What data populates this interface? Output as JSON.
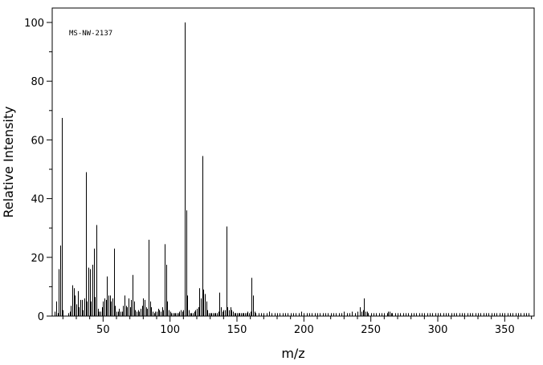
{
  "chart_data": {
    "type": "bar",
    "annotation": "MS-NW-2137",
    "xlabel": "m/z",
    "ylabel": "Relative Intensity",
    "xlim": [
      12,
      372
    ],
    "ylim": [
      0,
      100
    ],
    "x_ticks": [
      50,
      100,
      150,
      200,
      250,
      300,
      350
    ],
    "x_tick_labels": [
      "50",
      "100",
      "150",
      "200",
      "250",
      "300",
      "350"
    ],
    "y_ticks": [
      0,
      20,
      40,
      60,
      80,
      100
    ],
    "y_tick_labels": [
      "0",
      "20",
      "40",
      "60",
      "80",
      "100"
    ],
    "grid": false,
    "legend": "none",
    "colors": {
      "bars": "#000000",
      "frame": "#000000"
    },
    "peaks": [
      [
        14,
        1.5
      ],
      [
        15,
        5
      ],
      [
        16,
        1
      ],
      [
        17,
        16
      ],
      [
        18,
        24
      ],
      [
        19,
        67.5
      ],
      [
        20,
        2
      ],
      [
        24,
        1
      ],
      [
        25,
        1.5
      ],
      [
        26,
        3.5
      ],
      [
        27,
        10.5
      ],
      [
        28,
        9.5
      ],
      [
        29,
        7
      ],
      [
        30,
        4
      ],
      [
        31,
        8.5
      ],
      [
        32,
        3
      ],
      [
        33,
        5.5
      ],
      [
        34,
        5.5
      ],
      [
        35,
        2
      ],
      [
        36,
        6
      ],
      [
        37,
        49
      ],
      [
        38,
        5
      ],
      [
        39,
        16.5
      ],
      [
        40,
        16
      ],
      [
        41,
        5
      ],
      [
        42,
        17.5
      ],
      [
        43,
        23
      ],
      [
        44,
        6.5
      ],
      [
        45,
        31
      ],
      [
        46,
        2.5
      ],
      [
        47,
        1.5
      ],
      [
        48,
        1.5
      ],
      [
        49,
        3
      ],
      [
        50,
        5
      ],
      [
        51,
        6
      ],
      [
        52,
        5.5
      ],
      [
        53,
        13.5
      ],
      [
        54,
        7
      ],
      [
        55,
        7
      ],
      [
        56,
        5
      ],
      [
        57,
        6
      ],
      [
        58,
        23
      ],
      [
        59,
        3.5
      ],
      [
        60,
        1.5
      ],
      [
        61,
        1.5
      ],
      [
        62,
        2.5
      ],
      [
        63,
        1.5
      ],
      [
        64,
        1.5
      ],
      [
        65,
        3.5
      ],
      [
        66,
        7
      ],
      [
        67,
        3.5
      ],
      [
        68,
        3
      ],
      [
        69,
        6
      ],
      [
        70,
        3
      ],
      [
        71,
        5.5
      ],
      [
        72,
        14
      ],
      [
        73,
        5
      ],
      [
        74,
        2
      ],
      [
        75,
        1.5
      ],
      [
        76,
        2
      ],
      [
        77,
        1.5
      ],
      [
        78,
        2.5
      ],
      [
        79,
        3.5
      ],
      [
        80,
        6
      ],
      [
        81,
        5.5
      ],
      [
        82,
        3
      ],
      [
        83,
        2.5
      ],
      [
        84,
        26
      ],
      [
        85,
        5
      ],
      [
        86,
        3
      ],
      [
        87,
        1.5
      ],
      [
        88,
        1
      ],
      [
        89,
        1.5
      ],
      [
        90,
        1.5
      ],
      [
        91,
        2.5
      ],
      [
        92,
        2
      ],
      [
        93,
        1.5
      ],
      [
        94,
        3
      ],
      [
        95,
        2
      ],
      [
        96,
        24.5
      ],
      [
        97,
        17.5
      ],
      [
        98,
        5
      ],
      [
        99,
        2
      ],
      [
        100,
        1.5
      ],
      [
        101,
        1
      ],
      [
        102,
        1
      ],
      [
        103,
        1
      ],
      [
        104,
        1
      ],
      [
        105,
        1
      ],
      [
        106,
        1
      ],
      [
        107,
        1.5
      ],
      [
        108,
        2
      ],
      [
        109,
        1.5
      ],
      [
        110,
        2
      ],
      [
        111,
        100
      ],
      [
        112,
        36
      ],
      [
        113,
        7
      ],
      [
        114,
        2
      ],
      [
        115,
        1
      ],
      [
        116,
        1
      ],
      [
        117,
        1
      ],
      [
        118,
        1.5
      ],
      [
        119,
        2
      ],
      [
        120,
        2.5
      ],
      [
        121,
        3
      ],
      [
        122,
        9.5
      ],
      [
        123,
        6
      ],
      [
        124,
        54.5
      ],
      [
        125,
        9
      ],
      [
        126,
        7.5
      ],
      [
        127,
        5
      ],
      [
        128,
        2
      ],
      [
        129,
        1
      ],
      [
        130,
        1
      ],
      [
        131,
        1
      ],
      [
        132,
        1
      ],
      [
        133,
        1
      ],
      [
        134,
        1
      ],
      [
        135,
        1
      ],
      [
        136,
        1.5
      ],
      [
        137,
        8
      ],
      [
        138,
        3
      ],
      [
        139,
        1.5
      ],
      [
        140,
        2
      ],
      [
        141,
        2
      ],
      [
        142,
        30.5
      ],
      [
        143,
        3
      ],
      [
        144,
        2
      ],
      [
        145,
        3
      ],
      [
        146,
        2
      ],
      [
        147,
        1.5
      ],
      [
        148,
        1
      ],
      [
        149,
        1
      ],
      [
        150,
        1
      ],
      [
        151,
        1
      ],
      [
        152,
        1
      ],
      [
        153,
        1
      ],
      [
        154,
        1
      ],
      [
        155,
        1
      ],
      [
        156,
        1
      ],
      [
        157,
        1
      ],
      [
        158,
        1.5
      ],
      [
        159,
        1
      ],
      [
        160,
        1.5
      ],
      [
        161,
        13
      ],
      [
        162,
        7
      ],
      [
        163,
        1.5
      ],
      [
        164,
        1
      ],
      [
        166,
        1
      ],
      [
        168,
        1
      ],
      [
        170,
        1
      ],
      [
        172,
        1
      ],
      [
        174,
        1.5
      ],
      [
        176,
        1
      ],
      [
        178,
        1
      ],
      [
        180,
        1
      ],
      [
        182,
        1
      ],
      [
        184,
        1
      ],
      [
        186,
        1
      ],
      [
        188,
        1
      ],
      [
        190,
        1
      ],
      [
        192,
        1
      ],
      [
        194,
        1
      ],
      [
        196,
        1
      ],
      [
        198,
        1.5
      ],
      [
        200,
        1
      ],
      [
        202,
        1
      ],
      [
        204,
        1
      ],
      [
        206,
        1
      ],
      [
        208,
        1
      ],
      [
        210,
        1
      ],
      [
        212,
        1
      ],
      [
        214,
        1
      ],
      [
        216,
        1
      ],
      [
        218,
        1
      ],
      [
        220,
        1
      ],
      [
        222,
        1
      ],
      [
        224,
        1
      ],
      [
        226,
        1
      ],
      [
        228,
        1
      ],
      [
        230,
        1.5
      ],
      [
        232,
        1
      ],
      [
        234,
        1
      ],
      [
        236,
        1.5
      ],
      [
        238,
        1
      ],
      [
        240,
        1.5
      ],
      [
        242,
        3
      ],
      [
        243,
        1.5
      ],
      [
        244,
        2
      ],
      [
        245,
        6
      ],
      [
        246,
        1.5
      ],
      [
        247,
        1.5
      ],
      [
        248,
        1
      ],
      [
        250,
        1
      ],
      [
        252,
        1
      ],
      [
        254,
        1
      ],
      [
        256,
        1
      ],
      [
        258,
        1
      ],
      [
        260,
        1
      ],
      [
        262,
        1
      ],
      [
        263,
        1.5
      ],
      [
        264,
        1.5
      ],
      [
        265,
        1
      ],
      [
        266,
        1
      ],
      [
        268,
        1
      ],
      [
        270,
        1
      ],
      [
        272,
        1
      ],
      [
        274,
        1
      ],
      [
        276,
        1
      ],
      [
        278,
        1
      ],
      [
        280,
        1
      ],
      [
        282,
        1
      ],
      [
        284,
        1
      ],
      [
        286,
        1
      ],
      [
        288,
        1
      ],
      [
        290,
        1
      ],
      [
        292,
        1
      ],
      [
        294,
        1
      ],
      [
        296,
        1
      ],
      [
        298,
        1
      ],
      [
        300,
        1
      ],
      [
        302,
        1
      ],
      [
        304,
        1
      ],
      [
        306,
        1
      ],
      [
        308,
        1
      ],
      [
        310,
        1
      ],
      [
        312,
        1
      ],
      [
        314,
        1
      ],
      [
        316,
        1
      ],
      [
        318,
        1
      ],
      [
        320,
        1
      ],
      [
        322,
        1
      ],
      [
        324,
        1
      ],
      [
        326,
        1
      ],
      [
        328,
        1
      ],
      [
        330,
        1
      ],
      [
        332,
        1
      ],
      [
        334,
        1
      ],
      [
        336,
        1
      ],
      [
        338,
        1
      ],
      [
        340,
        1
      ],
      [
        342,
        1
      ],
      [
        344,
        1
      ],
      [
        346,
        1
      ],
      [
        348,
        1
      ],
      [
        350,
        1
      ],
      [
        352,
        1
      ],
      [
        354,
        1
      ],
      [
        356,
        1
      ],
      [
        358,
        1
      ],
      [
        360,
        1
      ],
      [
        362,
        1
      ],
      [
        364,
        1
      ],
      [
        366,
        1
      ],
      [
        368,
        1
      ]
    ]
  }
}
